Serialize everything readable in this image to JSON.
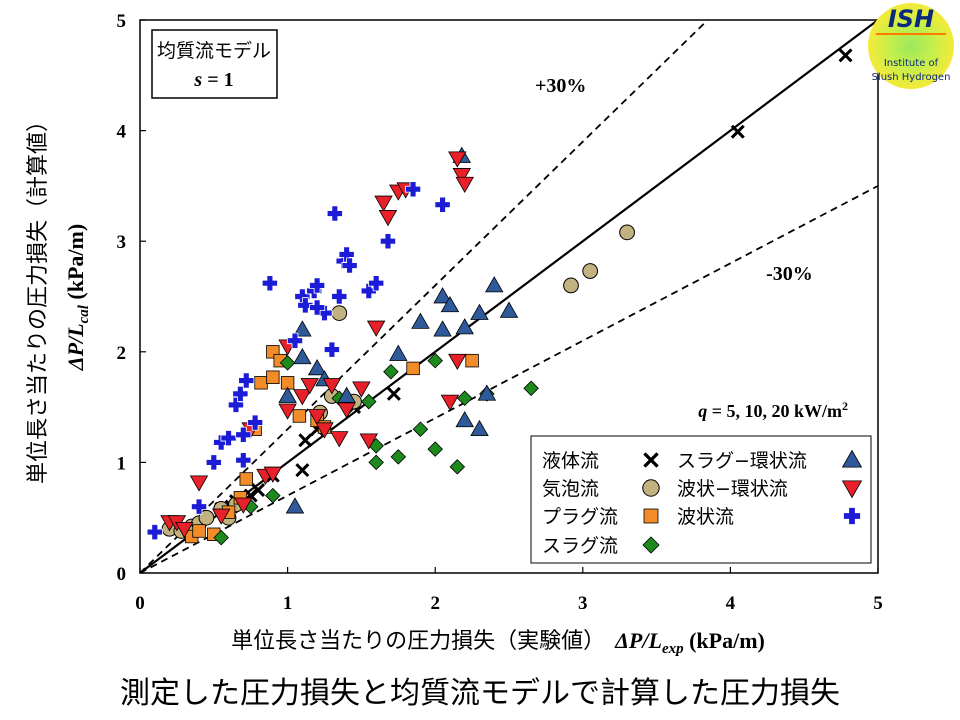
{
  "caption": "測定した圧力損失と均質流モデルで計算した圧力損失",
  "logo": {
    "text": "ISH",
    "subtitle_line1": "Institute of",
    "subtitle_line2": "Slush Hydrogen",
    "colors": {
      "outer": "#f2ea3a",
      "inner": "#8ee25a",
      "accent": "#ff7a00"
    }
  },
  "chart_data": {
    "type": "scatter",
    "model_box": {
      "line1": "均質流モデル",
      "line2_var": "s",
      "line2_rest": " = 1"
    },
    "xlabel": {
      "jp": "単位長さ当たりの圧力損失（実験値）",
      "sym": "ΔP/L",
      "sub": "exp",
      "unit": " (kPa/m)"
    },
    "ylabel": {
      "jp": "単位長さ当たりの圧力損失（計算値）",
      "sym": "ΔP/L",
      "sub": "cal",
      "unit": " (kPa/m)"
    },
    "xlim": [
      0,
      5
    ],
    "ylim": [
      0,
      5
    ],
    "xticks": [
      "0",
      "1",
      "2",
      "3",
      "4",
      "5"
    ],
    "yticks": [
      "0",
      "1",
      "2",
      "3",
      "4",
      "5"
    ],
    "grid": false,
    "reference_lines": [
      {
        "slope": 1.0,
        "style": "solid",
        "label": ""
      },
      {
        "slope": 1.3,
        "style": "dashed",
        "label": "+30%",
        "label_x": 2.85,
        "label_y": 4.35
      },
      {
        "slope": 0.7,
        "style": "dashed",
        "label": "-30%",
        "label_x": 4.4,
        "label_y": 2.65
      }
    ],
    "condition": {
      "var": "q",
      "text": " = 5, 10, 20 kW/m",
      "sup": "2"
    },
    "legend_position": "bottom-right",
    "series": [
      {
        "name": "液体流",
        "marker": "x",
        "color": "#000000",
        "points": [
          [
            0.55,
            0.58
          ],
          [
            0.62,
            0.6
          ],
          [
            0.65,
            0.65
          ],
          [
            0.7,
            0.64
          ],
          [
            0.75,
            0.7
          ],
          [
            0.8,
            0.75
          ],
          [
            0.9,
            0.88
          ],
          [
            1.1,
            0.93
          ],
          [
            1.12,
            1.2
          ],
          [
            1.2,
            1.3
          ],
          [
            1.45,
            1.5
          ],
          [
            1.72,
            1.62
          ],
          [
            4.05,
            3.99
          ],
          [
            4.78,
            4.68
          ]
        ]
      },
      {
        "name": "気泡流",
        "marker": "circle",
        "color": "#c2b280",
        "points": [
          [
            0.2,
            0.4
          ],
          [
            0.28,
            0.38
          ],
          [
            0.35,
            0.42
          ],
          [
            0.4,
            0.45
          ],
          [
            0.45,
            0.5
          ],
          [
            0.55,
            0.58
          ],
          [
            0.6,
            0.5
          ],
          [
            0.65,
            0.62
          ],
          [
            1.22,
            1.45
          ],
          [
            1.3,
            1.6
          ],
          [
            1.35,
            2.35
          ],
          [
            1.45,
            1.55
          ],
          [
            2.92,
            2.6
          ],
          [
            3.05,
            2.73
          ],
          [
            3.3,
            3.08
          ]
        ]
      },
      {
        "name": "プラグ流",
        "marker": "square",
        "color": "#f28c28",
        "points": [
          [
            0.35,
            0.33
          ],
          [
            0.4,
            0.38
          ],
          [
            0.5,
            0.35
          ],
          [
            0.6,
            0.55
          ],
          [
            0.68,
            0.68
          ],
          [
            0.72,
            0.85
          ],
          [
            0.78,
            1.3
          ],
          [
            0.82,
            1.72
          ],
          [
            0.9,
            1.77
          ],
          [
            0.9,
            2.0
          ],
          [
            0.95,
            1.92
          ],
          [
            1.0,
            1.72
          ],
          [
            1.08,
            1.42
          ],
          [
            1.2,
            1.38
          ],
          [
            1.25,
            1.32
          ],
          [
            1.85,
            1.85
          ],
          [
            2.25,
            1.92
          ]
        ]
      },
      {
        "name": "スラグ流",
        "marker": "diamond",
        "color": "#1e8a1e",
        "points": [
          [
            0.55,
            0.32
          ],
          [
            0.75,
            0.6
          ],
          [
            0.9,
            0.7
          ],
          [
            1.0,
            1.9
          ],
          [
            1.35,
            1.58
          ],
          [
            1.4,
            1.55
          ],
          [
            1.55,
            1.55
          ],
          [
            1.6,
            1.0
          ],
          [
            1.6,
            1.15
          ],
          [
            1.7,
            1.82
          ],
          [
            1.75,
            1.05
          ],
          [
            1.9,
            1.3
          ],
          [
            2.0,
            1.12
          ],
          [
            2.15,
            0.96
          ],
          [
            2.2,
            1.58
          ],
          [
            2.35,
            1.62
          ],
          [
            2.65,
            1.67
          ],
          [
            2.0,
            1.92
          ]
        ]
      },
      {
        "name": "スラグ−環状流",
        "marker": "triangle-up",
        "color": "#2e5a9a",
        "points": [
          [
            1.05,
            0.6
          ],
          [
            1.0,
            1.6
          ],
          [
            1.1,
            1.95
          ],
          [
            1.1,
            2.2
          ],
          [
            1.2,
            1.85
          ],
          [
            1.25,
            1.75
          ],
          [
            1.4,
            1.6
          ],
          [
            1.75,
            1.98
          ],
          [
            1.9,
            2.27
          ],
          [
            2.05,
            2.2
          ],
          [
            2.05,
            2.5
          ],
          [
            2.1,
            2.42
          ],
          [
            2.2,
            2.22
          ],
          [
            2.2,
            1.38
          ],
          [
            2.3,
            2.35
          ],
          [
            2.3,
            1.3
          ],
          [
            2.35,
            1.62
          ],
          [
            2.4,
            2.6
          ],
          [
            2.5,
            2.37
          ],
          [
            2.18,
            3.77
          ]
        ]
      },
      {
        "name": "波状−環状流",
        "marker": "triangle-down",
        "color": "#e8202a",
        "points": [
          [
            0.2,
            0.46
          ],
          [
            0.25,
            0.46
          ],
          [
            0.3,
            0.4
          ],
          [
            0.4,
            0.82
          ],
          [
            0.55,
            0.52
          ],
          [
            0.7,
            0.62
          ],
          [
            0.75,
            1.3
          ],
          [
            0.85,
            0.88
          ],
          [
            0.9,
            0.9
          ],
          [
            1.0,
            1.47
          ],
          [
            1.0,
            2.05
          ],
          [
            1.1,
            1.6
          ],
          [
            1.15,
            1.7
          ],
          [
            1.2,
            1.42
          ],
          [
            1.25,
            1.3
          ],
          [
            1.3,
            1.7
          ],
          [
            1.35,
            1.22
          ],
          [
            1.4,
            1.48
          ],
          [
            1.5,
            1.67
          ],
          [
            1.55,
            1.2
          ],
          [
            1.6,
            2.22
          ],
          [
            1.65,
            3.35
          ],
          [
            1.68,
            3.22
          ],
          [
            1.75,
            3.45
          ],
          [
            1.8,
            3.47
          ],
          [
            2.1,
            1.55
          ],
          [
            2.15,
            1.92
          ],
          [
            2.15,
            3.75
          ],
          [
            2.18,
            3.6
          ],
          [
            2.2,
            3.52
          ]
        ]
      },
      {
        "name": "波状流",
        "marker": "plus",
        "color": "#1c1cd6",
        "points": [
          [
            0.1,
            0.37
          ],
          [
            0.4,
            0.6
          ],
          [
            0.5,
            1.0
          ],
          [
            0.55,
            1.18
          ],
          [
            0.6,
            1.22
          ],
          [
            0.65,
            1.52
          ],
          [
            0.68,
            1.62
          ],
          [
            0.7,
            1.25
          ],
          [
            0.7,
            1.02
          ],
          [
            0.72,
            1.74
          ],
          [
            0.78,
            1.36
          ],
          [
            0.88,
            2.62
          ],
          [
            1.05,
            2.1
          ],
          [
            1.1,
            2.5
          ],
          [
            1.12,
            2.42
          ],
          [
            1.18,
            2.55
          ],
          [
            1.2,
            2.6
          ],
          [
            1.25,
            2.35
          ],
          [
            1.3,
            2.02
          ],
          [
            1.32,
            3.25
          ],
          [
            1.35,
            2.5
          ],
          [
            1.38,
            2.82
          ],
          [
            1.4,
            2.88
          ],
          [
            1.42,
            2.78
          ],
          [
            1.55,
            2.55
          ],
          [
            1.6,
            2.62
          ],
          [
            1.68,
            3.0
          ],
          [
            1.85,
            3.47
          ],
          [
            2.05,
            3.33
          ],
          [
            1.2,
            2.4
          ]
        ]
      }
    ]
  }
}
